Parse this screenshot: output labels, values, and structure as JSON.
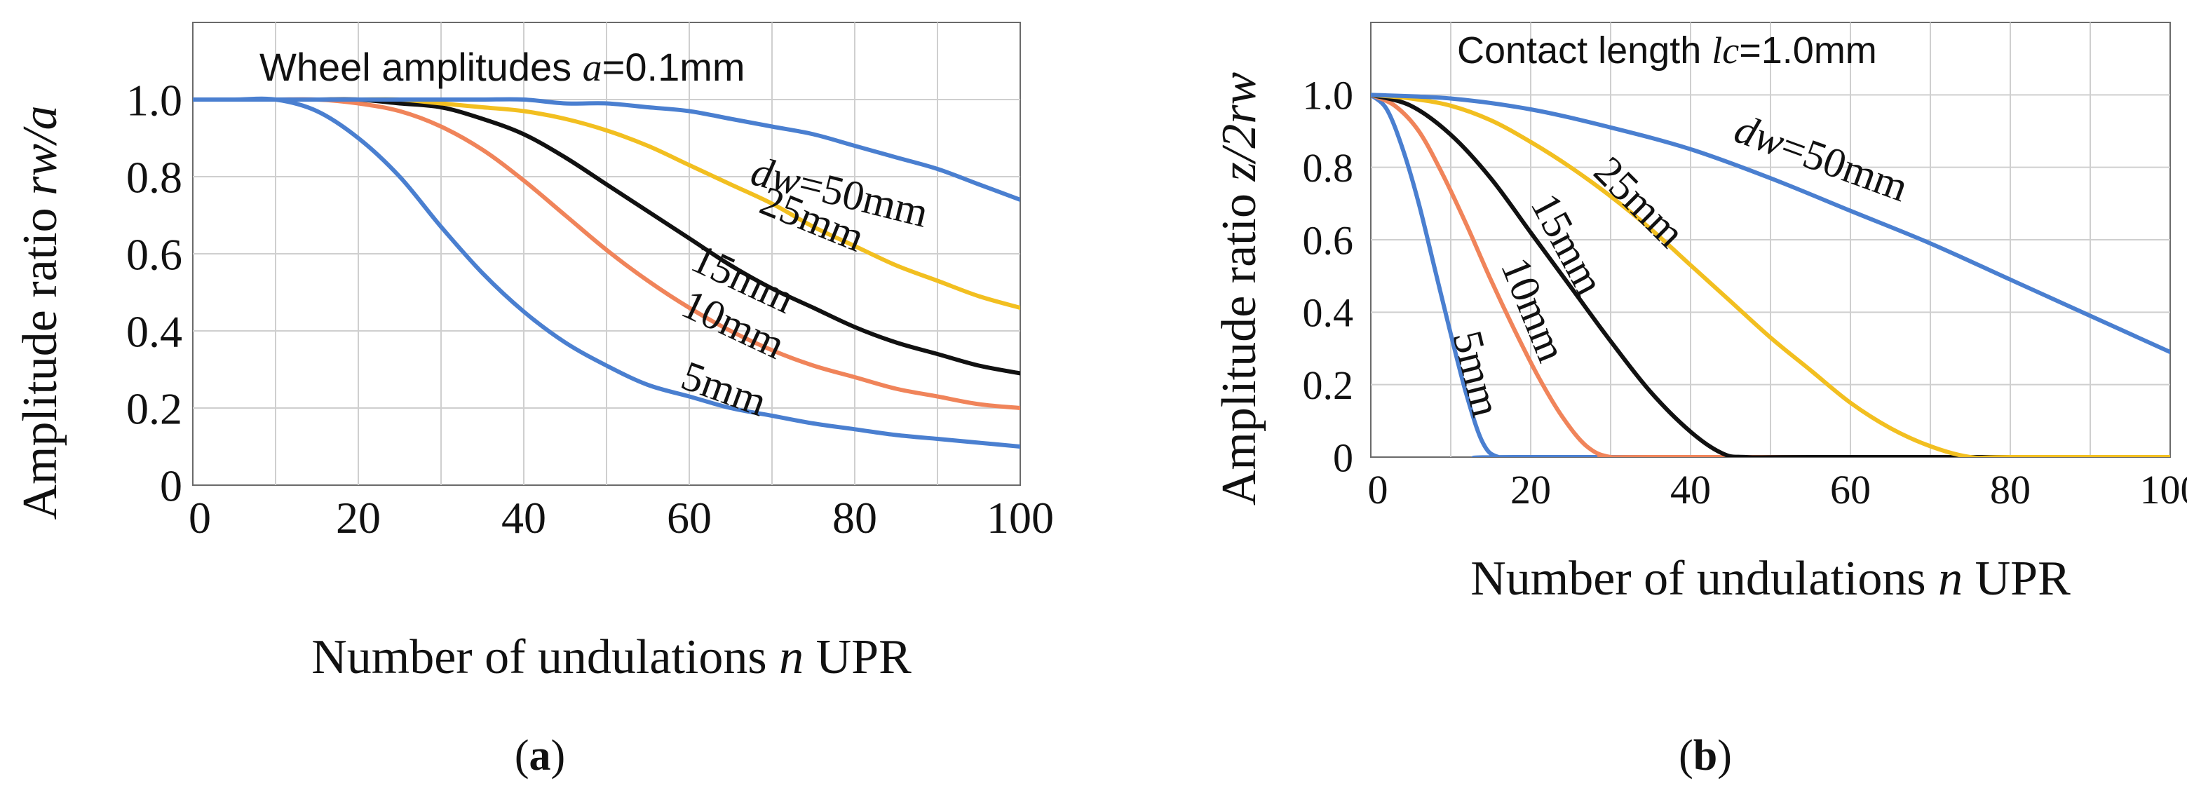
{
  "chart_data": [
    {
      "type": "line",
      "panel_label": "(a)",
      "panel_letter": "a",
      "title_prefix": "Wheel amplitudes ",
      "title_var": "a",
      "title_suffix": "=0.1mm",
      "xlabel_prefix": "Number of undulations ",
      "xlabel_var": "n",
      "xlabel_suffix": " UPR",
      "ylabel_prefix": "Amplitude ratio ",
      "ylabel_var": "rw/a",
      "xlim": [
        0,
        100
      ],
      "ylim": [
        0,
        1.2
      ],
      "xticks": [
        "0",
        "20",
        "40",
        "60",
        "80",
        "100"
      ],
      "yticks": [
        "0",
        "0.2",
        "0.4",
        "0.6",
        "0.8",
        "1.0"
      ],
      "grid": true,
      "x": [
        0,
        5,
        10,
        15,
        20,
        25,
        30,
        35,
        40,
        45,
        50,
        55,
        60,
        65,
        70,
        75,
        80,
        85,
        90,
        95,
        100
      ],
      "series": [
        {
          "name": "5mm",
          "label": "5mm",
          "label_var": "",
          "color": "#4a7fd0",
          "values": [
            1.0,
            1.0,
            1.0,
            0.97,
            0.9,
            0.8,
            0.67,
            0.55,
            0.45,
            0.37,
            0.31,
            0.26,
            0.23,
            0.2,
            0.18,
            0.16,
            0.145,
            0.13,
            0.12,
            0.11,
            0.1
          ]
        },
        {
          "name": "10mm",
          "label": "10mm",
          "label_var": "",
          "color": "#f0845a",
          "values": [
            1.0,
            1.0,
            1.0,
            1.0,
            0.99,
            0.97,
            0.93,
            0.87,
            0.79,
            0.7,
            0.61,
            0.53,
            0.46,
            0.4,
            0.35,
            0.31,
            0.28,
            0.25,
            0.23,
            0.21,
            0.2
          ]
        },
        {
          "name": "15mm",
          "label": "15mm",
          "label_var": "",
          "color": "#111111",
          "values": [
            1.0,
            1.0,
            1.0,
            1.0,
            1.0,
            0.99,
            0.98,
            0.95,
            0.91,
            0.85,
            0.78,
            0.71,
            0.64,
            0.57,
            0.51,
            0.46,
            0.41,
            0.37,
            0.34,
            0.31,
            0.29
          ]
        },
        {
          "name": "25mm",
          "label": "25mm",
          "label_var": "",
          "color": "#f2bf20",
          "values": [
            1.0,
            1.0,
            1.0,
            1.0,
            1.0,
            1.0,
            0.99,
            0.98,
            0.97,
            0.95,
            0.92,
            0.88,
            0.83,
            0.78,
            0.73,
            0.67,
            0.62,
            0.57,
            0.53,
            0.49,
            0.46
          ]
        },
        {
          "name": "dw=50mm",
          "label": "=50mm",
          "label_var": "dw",
          "color": "#4a7fd0",
          "values": [
            1.0,
            1.0,
            1.0,
            1.0,
            1.0,
            1.0,
            1.0,
            1.0,
            1.0,
            0.99,
            0.99,
            0.98,
            0.97,
            0.95,
            0.93,
            0.91,
            0.88,
            0.85,
            0.82,
            0.78,
            0.74
          ]
        }
      ]
    },
    {
      "type": "line",
      "panel_label": "(b)",
      "panel_letter": "b",
      "title_prefix": "Contact length ",
      "title_var": "lc",
      "title_suffix": "=1.0mm",
      "xlabel_prefix": "Number of undulations ",
      "xlabel_var": "n",
      "xlabel_suffix": " UPR",
      "ylabel_prefix": "Amplitude ratio ",
      "ylabel_var": "z/2rw",
      "xlim": [
        0,
        100
      ],
      "ylim": [
        0,
        1.2
      ],
      "xticks": [
        "0",
        "20",
        "40",
        "60",
        "80",
        "100"
      ],
      "yticks": [
        "0",
        "0.2",
        "0.4",
        "0.6",
        "0.8",
        "1.0"
      ],
      "grid": true,
      "series": [
        {
          "name": "5mm",
          "label": "5mm",
          "label_var": "",
          "color": "#4a7fd0",
          "x": [
            0,
            2,
            4,
            6,
            8,
            10,
            12,
            14,
            16,
            20,
            100
          ],
          "values": [
            1.0,
            0.96,
            0.85,
            0.7,
            0.52,
            0.34,
            0.17,
            0.04,
            0.0,
            0.0,
            0.0
          ]
        },
        {
          "name": "10mm",
          "label": "10mm",
          "label_var": "",
          "color": "#f0845a",
          "x": [
            0,
            3,
            6,
            9,
            12,
            15,
            18,
            21,
            24,
            27,
            30,
            35,
            100
          ],
          "values": [
            1.0,
            0.97,
            0.9,
            0.78,
            0.64,
            0.49,
            0.35,
            0.22,
            0.11,
            0.03,
            0.0,
            0.0,
            0.0
          ]
        },
        {
          "name": "15mm",
          "label": "15mm",
          "label_var": "",
          "color": "#111111",
          "x": [
            0,
            5,
            10,
            15,
            20,
            25,
            30,
            35,
            40,
            44,
            47,
            55,
            100
          ],
          "values": [
            1.0,
            0.97,
            0.89,
            0.77,
            0.62,
            0.47,
            0.32,
            0.18,
            0.07,
            0.01,
            0.0,
            0.0,
            0.0
          ]
        },
        {
          "name": "25mm",
          "label": "25mm",
          "label_var": "",
          "color": "#f2bf20",
          "x": [
            0,
            5,
            10,
            15,
            20,
            25,
            30,
            35,
            40,
            45,
            50,
            55,
            60,
            65,
            70,
            75,
            80,
            100
          ],
          "values": [
            1.0,
            0.99,
            0.97,
            0.93,
            0.87,
            0.8,
            0.72,
            0.63,
            0.53,
            0.43,
            0.33,
            0.24,
            0.15,
            0.08,
            0.03,
            0.0,
            0.0,
            0.0
          ]
        },
        {
          "name": "dw=50mm",
          "label": "=50mm",
          "label_var": "dw",
          "color": "#4a7fd0",
          "x": [
            0,
            10,
            20,
            30,
            40,
            50,
            60,
            70,
            80,
            90,
            100
          ],
          "values": [
            1.0,
            0.99,
            0.96,
            0.91,
            0.85,
            0.77,
            0.68,
            0.59,
            0.49,
            0.39,
            0.29
          ]
        }
      ]
    }
  ]
}
